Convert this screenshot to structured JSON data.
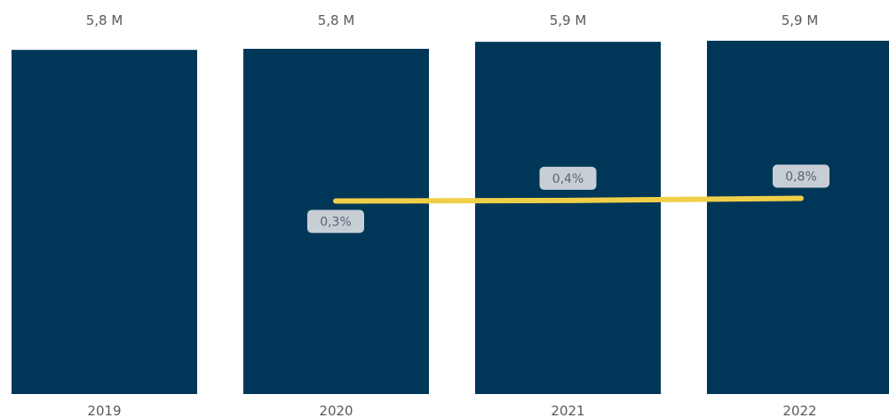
{
  "chart_data": {
    "type": "bar",
    "categories": [
      "2019",
      "2020",
      "2021",
      "2022"
    ],
    "series": [
      {
        "values": [
          5.8,
          5.8,
          5.9,
          5.9
        ],
        "labels": [
          "5,8 M",
          "5,8 M",
          "5,9 M",
          "5,9 M"
        ],
        "color": "#003758"
      },
      {
        "type": "line",
        "values": [
          null,
          0.3,
          0.4,
          0.8
        ],
        "labels": [
          "",
          "0,3%",
          "0,4%",
          "0,8%"
        ],
        "color": "#f0cf48"
      }
    ],
    "title": "",
    "xlabel": "",
    "ylabel": "",
    "grid": false,
    "legend": "none"
  }
}
